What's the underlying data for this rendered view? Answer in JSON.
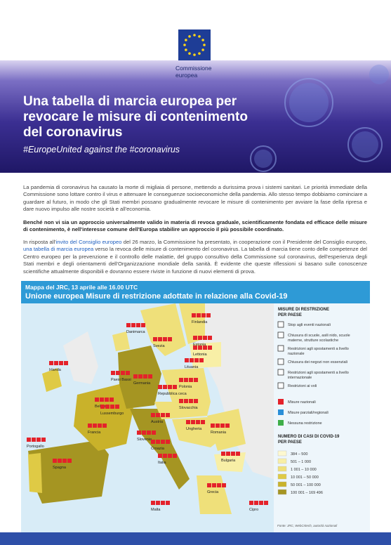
{
  "header": {
    "logo_lines": [
      "Commissione",
      "europea"
    ]
  },
  "banner": {
    "title": "Una tabella di marcia europea per revocare le misure di contenimento del coronavirus",
    "subtitle": "#EuropeUnited against the #coronavirus"
  },
  "body": {
    "paragraph_1": "La pandemia di coronavirus ha causato la morte di migliaia di persone, mettendo a durissima prova i sistemi sanitari. Le priorità immediate della Commissione sono lottare contro il virus e attenuare le conseguenze socioeconomiche della pandemia. Allo stesso tempo dobbiamo cominciare a guardare al futuro, in modo che gli Stati membri possano gradualmente revocare le misure di contenimento per avviare la fase della ripresa e dare nuovo impulso alle nostre società e all'economia.",
    "paragraph_2": "Benché non vi sia un approccio universalmente valido in materia di revoca graduale, scientificamente fondata ed efficace delle misure di contenimento, è nell'interesse comune dell'Europa stabilire un approccio il più possibile coordinato.",
    "paragraph_3": [
      "In risposta all'",
      "invito del Consiglio europeo",
      " del 26 marzo, la Commissione ha presentato, in cooperazione con il Presidente del Consiglio europeo, ",
      "una tabella di marcia europea",
      " verso la revoca delle misure di contenimento del coronavirus. La tabella di marcia tiene conto delle competenze del Centro europeo per la prevenzione e il controllo delle malattie, del gruppo consultivo della Commissione sul coronavirus, dell'esperienza degli Stati membri e degli orientamenti dell'Organizzazione mondiale della sanità. È evidente che queste riflessioni si basano sulle conoscenze scientifiche attualmente disponibili e dovranno essere riviste in funzione di nuovi elementi di prova."
    ]
  },
  "map": {
    "title_line_1": "Mappa del JRC, 13 aprile alle 16.00 UTC",
    "title_line_2": "Unione europea Misure di restrizione adottate in relazione alla Covid-19",
    "countries": [
      "Irlanda",
      "Paesi Bassi",
      "Danimarca",
      "Svezia",
      "Finlandia",
      "Estonia",
      "Lettonia",
      "Lituania",
      "Polonia",
      "Germania",
      "Belgio",
      "Lussemburgo",
      "Repubblica ceca",
      "Slovacchia",
      "Austria",
      "Ungheria",
      "Romania",
      "Francia",
      "Slovenia",
      "Croazia",
      "Italia",
      "Bulgaria",
      "Portogallo",
      "Spagna",
      "Grecia",
      "Malta",
      "Cipro"
    ],
    "legend": {
      "measures_title": [
        "MISURE DI RESTRIZIONE",
        "PER PAESE"
      ],
      "measures": [
        [
          "Stop agli eventi nazionali"
        ],
        [
          "Chiusura di scuole, asili nido, scuole",
          "materne, strutture scolastiche"
        ],
        [
          "Restrizioni agli spostamenti a livello",
          "nazionale"
        ],
        [
          "Chiusura dei negozi non essenziali"
        ],
        [
          "Restrizioni agli spostamenti a livello",
          "internazionale"
        ],
        [
          "Restrizioni ai voli"
        ]
      ],
      "scope": [
        {
          "label": "Misure nazionali",
          "color": "#e4222b"
        },
        {
          "label": "Misure parziali/regionali",
          "color": "#2a8fd8"
        },
        {
          "label": "Nessuna restrizione",
          "color": "#3fae49"
        }
      ],
      "cases_title": [
        "NUMERO DI CASI DI COVID-19",
        "PER PAESE"
      ],
      "cases": [
        {
          "label": "384 – 500",
          "color": "#fdf8d0"
        },
        {
          "label": "501 – 1 000",
          "color": "#f8efa6"
        },
        {
          "label": "1 001 – 10 000",
          "color": "#efe07a"
        },
        {
          "label": "10 001 – 50 000",
          "color": "#dfca45"
        },
        {
          "label": "50 001 – 100 000",
          "color": "#c9b22a"
        },
        {
          "label": "100 001 – 169 496",
          "color": "#a59522"
        }
      ]
    },
    "source": "Fonte: JRC, WebCritech, autorità nazionali"
  }
}
